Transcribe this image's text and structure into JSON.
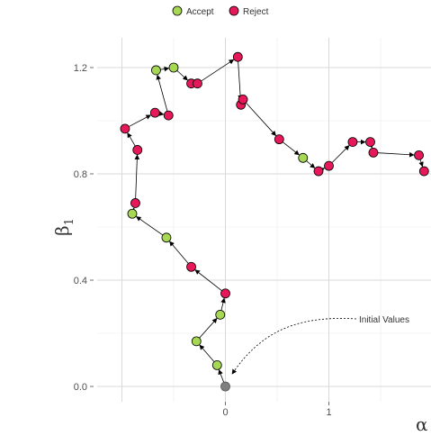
{
  "chart_data": {
    "type": "line",
    "legend": {
      "placement": "top",
      "entries": [
        {
          "label": "Accept",
          "color": "#a6d854"
        },
        {
          "label": "Reject",
          "color": "#e7185a"
        }
      ]
    },
    "xlabel": {
      "symbol": "α",
      "subscript": ""
    },
    "ylabel": {
      "symbol": "β",
      "subscript": "1"
    },
    "xlim": [
      -1.0,
      1.0
    ],
    "ylim": [
      -0.05,
      1.3
    ],
    "x_ticks": [
      {
        "value": 0,
        "label": "0"
      },
      {
        "value": 1,
        "label": "1"
      }
    ],
    "y_ticks": [
      {
        "value": 0.0,
        "label": "0.0"
      },
      {
        "value": 0.4,
        "label": "0.4"
      },
      {
        "value": 0.8,
        "label": "0.8"
      },
      {
        "value": 1.2,
        "label": "1.2"
      }
    ],
    "grid": true,
    "start_point": {
      "x": 0.0,
      "y": 0.0,
      "color": "#7f7f7f"
    },
    "annotation": {
      "text": "Initial Values",
      "points_to": {
        "x": 0.03,
        "y": 0.03
      }
    },
    "path": [
      {
        "x": -0.08,
        "y": 0.08,
        "status": "Accept"
      },
      {
        "x": -0.28,
        "y": 0.17,
        "status": "Accept"
      },
      {
        "x": -0.05,
        "y": 0.27,
        "status": "Accept"
      },
      {
        "x": 0.0,
        "y": 0.35,
        "status": "Reject"
      },
      {
        "x": -0.33,
        "y": 0.45,
        "status": "Reject"
      },
      {
        "x": -0.57,
        "y": 0.56,
        "status": "Accept"
      },
      {
        "x": -0.9,
        "y": 0.65,
        "status": "Accept"
      },
      {
        "x": -0.87,
        "y": 0.69,
        "status": "Reject"
      },
      {
        "x": -0.85,
        "y": 0.89,
        "status": "Reject"
      },
      {
        "x": -0.97,
        "y": 0.97,
        "status": "Reject"
      },
      {
        "x": -0.68,
        "y": 1.03,
        "status": "Reject"
      },
      {
        "x": -0.55,
        "y": 1.02,
        "status": "Reject"
      },
      {
        "x": -0.67,
        "y": 1.19,
        "status": "Accept"
      },
      {
        "x": -0.5,
        "y": 1.2,
        "status": "Accept"
      },
      {
        "x": -0.33,
        "y": 1.14,
        "status": "Reject"
      },
      {
        "x": -0.27,
        "y": 1.14,
        "status": "Reject"
      },
      {
        "x": 0.12,
        "y": 1.24,
        "status": "Reject"
      },
      {
        "x": 0.15,
        "y": 1.06,
        "status": "Reject"
      },
      {
        "x": 0.17,
        "y": 1.08,
        "status": "Reject"
      },
      {
        "x": 0.52,
        "y": 0.93,
        "status": "Reject"
      },
      {
        "x": 0.75,
        "y": 0.86,
        "status": "Accept"
      },
      {
        "x": 0.9,
        "y": 0.81,
        "status": "Reject"
      },
      {
        "x": 1.0,
        "y": 0.83,
        "status": "Reject"
      },
      {
        "x": 1.23,
        "y": 0.92,
        "status": "Reject"
      },
      {
        "x": 1.4,
        "y": 0.92,
        "status": "Reject"
      },
      {
        "x": 1.43,
        "y": 0.88,
        "status": "Reject"
      },
      {
        "x": 1.87,
        "y": 0.87,
        "status": "Reject"
      },
      {
        "x": 1.92,
        "y": 0.81,
        "status": "Reject"
      }
    ]
  }
}
